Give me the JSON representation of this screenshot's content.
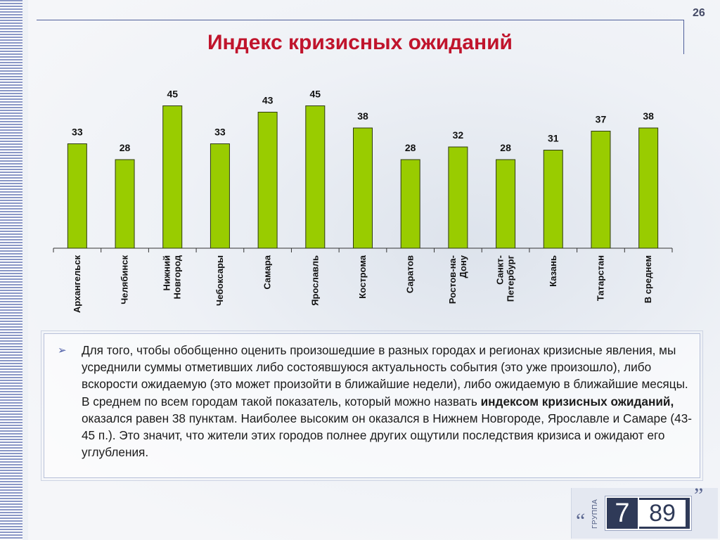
{
  "page_number": "26",
  "title": "Индекс кризисных ожиданий",
  "chart_data": {
    "type": "bar",
    "categories": [
      "Архангельск",
      "Челябинск",
      "Нижний Новгород",
      "Чебоксары",
      "Самара",
      "Ярославль",
      "Кострома",
      "Саратов",
      "Ростов-на-Дону",
      "Санкт-Петербург",
      "Казань",
      "Татарстан",
      "В среднем"
    ],
    "category_lines": [
      [
        "Архангельск"
      ],
      [
        "Челябинск"
      ],
      [
        "Нижний",
        "Новгород"
      ],
      [
        "Чебоксары"
      ],
      [
        "Самара"
      ],
      [
        "Ярославль"
      ],
      [
        "Кострома"
      ],
      [
        "Саратов"
      ],
      [
        "Ростов-на-",
        "Дону"
      ],
      [
        "Санкт-",
        "Петербург"
      ],
      [
        "Казань"
      ],
      [
        "Татарстан"
      ],
      [
        "В среднем"
      ]
    ],
    "values": [
      33,
      28,
      45,
      33,
      43,
      45,
      38,
      28,
      32,
      28,
      31,
      37,
      38
    ],
    "ylim": [
      0,
      50
    ],
    "bar_color": "#99cc00",
    "grid": false,
    "legend": "none"
  },
  "text": {
    "p1": "Для того, чтобы обобщенно оценить произошедшие в разных городах и регионах кризисные явления, мы усреднили суммы отметивших либо состоявшуюся актуальность события (это уже произошло), либо вскорости ожидаемую (это может произойти в ближайшие недели), либо ожидаемую в ближайшие месяцы. В среднем по всем городам такой показатель, который можно назвать ",
    "bold": "индексом кризисных ожиданий,",
    "p2": " оказался равен 38 пунктам. Наиболее высоким он оказался в Нижнем Новгороде, Ярославле и Самаре (43-45 п.). Это значит, что жители этих городов полнее других ощутили последствия кризиса и ожидают его углубления."
  },
  "logo": {
    "label": "ГРУППА",
    "digit1": "7",
    "digit2": "89",
    "quote_open": "“",
    "quote_close": "”"
  },
  "icons": {
    "bullet": "arrow-bullet-icon"
  },
  "colors": {
    "title": "#c0142c",
    "bar": "#99cc00",
    "frame": "#4f5f9a"
  }
}
